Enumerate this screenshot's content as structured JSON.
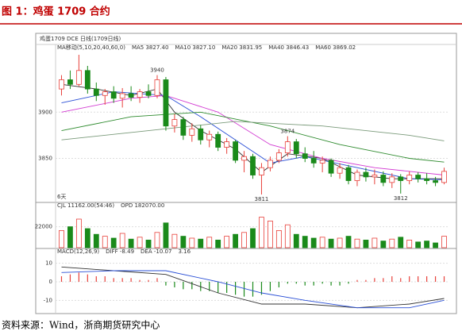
{
  "header": {
    "title": "图 1：鸡蛋 1709 合约"
  },
  "chart_data": [
    {
      "type": "candlestick",
      "title": "鸡蛋1709 DCE 日线(1709日线)",
      "legend_title": "MA移动(5,10,20,40,60,0)",
      "period_label": "6天",
      "up_color": "#e8413b",
      "down_color": "#1a8a1a",
      "open": [
        3925,
        3935,
        3930,
        3945,
        3925,
        3918,
        3922,
        3915,
        3920,
        3916,
        3922,
        3918,
        3935,
        3885,
        3892,
        3875,
        3882,
        3870,
        3876,
        3862,
        3868,
        3848,
        3852,
        3832,
        3840,
        3848,
        3856,
        3868,
        3855,
        3850,
        3845,
        3848,
        3834,
        3840,
        3826,
        3835,
        3830,
        3832,
        3824,
        3830,
        3826,
        3832,
        3828,
        3826,
        3824
      ],
      "high": [
        3940,
        3945,
        3962,
        3950,
        3932,
        3925,
        3928,
        3926,
        3928,
        3925,
        3930,
        3940,
        3938,
        3898,
        3895,
        3888,
        3886,
        3880,
        3879,
        3872,
        3870,
        3858,
        3855,
        3845,
        3852,
        3860,
        3874,
        3871,
        3862,
        3858,
        3852,
        3850,
        3845,
        3843,
        3838,
        3840,
        3838,
        3836,
        3834,
        3833,
        3836,
        3835,
        3834,
        3830,
        3840
      ],
      "low": [
        3918,
        3925,
        3928,
        3920,
        3912,
        3908,
        3910,
        3905,
        3912,
        3910,
        3915,
        3915,
        3880,
        3878,
        3870,
        3868,
        3865,
        3862,
        3858,
        3855,
        3845,
        3835,
        3828,
        3811,
        3836,
        3845,
        3852,
        3850,
        3846,
        3840,
        3835,
        3830,
        3828,
        3822,
        3820,
        3825,
        3822,
        3820,
        3818,
        3812,
        3822,
        3824,
        3822,
        3820,
        3822
      ],
      "close": [
        3935,
        3930,
        3945,
        3925,
        3918,
        3922,
        3915,
        3920,
        3916,
        3922,
        3918,
        3935,
        3885,
        3892,
        3875,
        3882,
        3870,
        3876,
        3862,
        3868,
        3848,
        3852,
        3832,
        3840,
        3848,
        3856,
        3868,
        3855,
        3850,
        3845,
        3848,
        3834,
        3840,
        3826,
        3835,
        3830,
        3832,
        3824,
        3830,
        3826,
        3832,
        3828,
        3826,
        3824,
        3836
      ],
      "ylim": [
        3805,
        3968
      ],
      "yticks": [
        3850,
        3900
      ],
      "series": [
        {
          "name": "MA5 3827.40",
          "color": "#333333",
          "x": [
            0,
            4,
            8,
            11,
            13,
            16,
            20,
            23,
            26,
            30,
            34,
            38,
            44
          ],
          "values": [
            3930,
            3925,
            3918,
            3925,
            3900,
            3880,
            3860,
            3835,
            3855,
            3850,
            3832,
            3828,
            3828
          ]
        },
        {
          "name": "MA10 3827.10",
          "color": "#2a4fd6",
          "x": [
            0,
            6,
            12,
            16,
            20,
            24,
            28,
            34,
            40,
            44
          ],
          "values": [
            3910,
            3922,
            3918,
            3895,
            3870,
            3845,
            3852,
            3840,
            3828,
            3827
          ]
        },
        {
          "name": "MA20 3831.95",
          "color": "#d23bd2",
          "x": [
            0,
            8,
            12,
            18,
            24,
            30,
            36,
            44
          ],
          "values": [
            3900,
            3915,
            3918,
            3900,
            3865,
            3850,
            3840,
            3832
          ]
        },
        {
          "name": "MA40 3846.43",
          "color": "#2e8b2e",
          "x": [
            0,
            8,
            16,
            24,
            32,
            40,
            44
          ],
          "values": [
            3880,
            3895,
            3900,
            3885,
            3865,
            3850,
            3846
          ]
        },
        {
          "name": "MA60 3869.02",
          "color": "#7a9a7a",
          "x": [
            0,
            10,
            20,
            30,
            40,
            44
          ],
          "values": [
            3870,
            3880,
            3890,
            3885,
            3875,
            3869
          ]
        }
      ]
    },
    {
      "type": "bar",
      "title": "CJL 11162.00(54:46)",
      "subtitle": "OPD 182070.00",
      "values": [
        18000,
        22000,
        30000,
        20000,
        14000,
        12000,
        10000,
        15000,
        9000,
        11000,
        8000,
        16000,
        26000,
        14000,
        12000,
        10000,
        9000,
        11000,
        8000,
        12000,
        14000,
        16000,
        20000,
        32000,
        28000,
        18000,
        24000,
        14000,
        12000,
        10000,
        11000,
        9000,
        10000,
        12000,
        9000,
        8000,
        10000,
        7000,
        9000,
        11000,
        8000,
        6000,
        7000,
        5000,
        12000
      ],
      "ylim": [
        0,
        40000
      ],
      "yticks": [
        22000
      ]
    },
    {
      "type": "macd",
      "title": "MACD(12,26,9)",
      "macd_label": "3.16",
      "up_color": "#e8413b",
      "down_color": "#1a8a1a",
      "values": [
        3,
        4,
        5,
        4,
        3,
        3,
        2,
        2,
        2,
        1,
        1,
        2,
        -2,
        -3,
        -4,
        -4,
        -5,
        -5,
        -6,
        -6,
        -7,
        -8,
        -8,
        -7,
        -5,
        -3,
        -1,
        -1,
        -2,
        -2,
        -1,
        -2,
        -2,
        -1,
        1,
        1,
        2,
        2,
        3,
        2,
        3,
        3,
        3,
        3,
        3
      ],
      "ylim": [
        -15,
        15
      ],
      "yticks": [
        10,
        0,
        -10
      ],
      "series": [
        {
          "name": "DIFF -8.49",
          "color": "#333333",
          "x": [
            0,
            6,
            12,
            18,
            23,
            28,
            34,
            40,
            44
          ],
          "values": [
            8,
            6,
            4,
            -6,
            -12,
            -12,
            -14,
            -12,
            -9
          ]
        },
        {
          "name": "DEA -10.07",
          "color": "#2a4fd6",
          "x": [
            0,
            6,
            12,
            18,
            23,
            28,
            34,
            40,
            44
          ],
          "values": [
            5,
            6,
            6,
            0,
            -6,
            -10,
            -14,
            -14,
            -10
          ]
        }
      ]
    }
  ],
  "source": "资料来源：Wind，浙商期货研究中心"
}
